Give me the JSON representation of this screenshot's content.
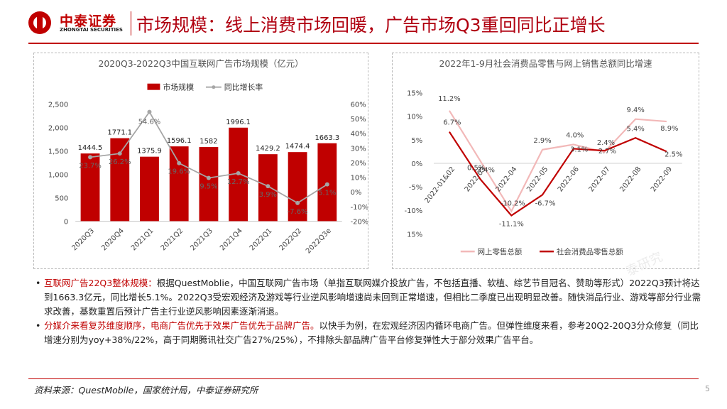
{
  "header": {
    "logo_cn": "中泰证券",
    "logo_en": "ZHONGTAI SECURITIES",
    "title": "市场规模：线上消费市场回暖，广告市场Q3重回同比正增长"
  },
  "colors": {
    "brand_red": "#c00000",
    "bar_red": "#c00000",
    "growth_gray": "#a6a6a6",
    "online_pink": "#f2b8b8",
    "total_red": "#c00000"
  },
  "chart_data": [
    {
      "type": "bar",
      "title": "2020Q3-2022Q3中国互联网广告市场规模（亿元）",
      "categories": [
        "2020Q3",
        "2020Q4",
        "2021Q1",
        "2021Q2",
        "2021Q3",
        "2021Q4",
        "2022Q1",
        "2022Q2",
        "2022Q3e"
      ],
      "series": [
        {
          "name": "市场规模",
          "type": "bar",
          "axis": "left",
          "values": [
            1444.5,
            1771.1,
            1375.9,
            1596.1,
            1582,
            1996.1,
            1429.2,
            1474.4,
            1663.3
          ],
          "labels": [
            "1444.5",
            "1771.1",
            "1375.9",
            "1596.1",
            "1582",
            "1996.1",
            "1429.2",
            "1474.4",
            "1663.3"
          ]
        },
        {
          "name": "同比增长率",
          "type": "line",
          "axis": "right",
          "values": [
            23.7,
            26.2,
            54.6,
            19.6,
            9.5,
            12.7,
            3.9,
            -7.6,
            5.1
          ],
          "labels": [
            "23.7%",
            "26.2%",
            "54.6%",
            "19.6%",
            "9.5%",
            "12.7%",
            "3.9%",
            "-7.6%",
            "5.1%"
          ]
        }
      ],
      "ylim": [
        0,
        2500
      ],
      "yticks": [
        "0",
        "500",
        "1,000",
        "1,500",
        "2,000",
        "2,500"
      ],
      "y2lim": [
        -20,
        60
      ],
      "y2ticks": [
        "-20%",
        "-10%",
        "0%",
        "10%",
        "20%",
        "30%",
        "40%",
        "50%",
        "60%"
      ],
      "legend": "top-center"
    },
    {
      "type": "line",
      "title": "2022年1-9月社会消费品零售与网上销售总额同比增速",
      "categories": [
        "2022-01&02",
        "2022-03",
        "2022-04",
        "2022-05",
        "2022-06",
        "2022-07",
        "2022-08",
        "2022-09"
      ],
      "series": [
        {
          "name": "网上零售总额",
          "values": [
            11.2,
            0.5,
            -10.2,
            2.9,
            4.0,
            2.4,
            9.4,
            8.9
          ],
          "labels": [
            "11.2%",
            "0.5%",
            "-10.2%",
            "2.9%",
            "4.0%",
            "2.4%",
            "9.4%",
            "8.9%"
          ]
        },
        {
          "name": "社会消费品零售总额",
          "values": [
            6.7,
            -3.4,
            -11.1,
            -6.7,
            3.1,
            2.7,
            5.4,
            2.5
          ],
          "labels": [
            "6.7%",
            "-3.4%",
            "-11.1%",
            "-6.7%",
            "3.1%",
            "2.7%",
            "5.4%",
            "2.5%"
          ]
        }
      ],
      "ylim": [
        -15,
        15
      ],
      "yticks": [
        "15%",
        "10%",
        "5%",
        "0%",
        "-5%",
        "-10%",
        "15%"
      ],
      "legend": "bottom"
    }
  ],
  "bullets": [
    {
      "head": "互联网广告22Q3整体规模：",
      "text": "根据QuestMoblie，中国互联网广告市场（单指互联网媒介投放广告，不包括直播、软植、综艺节目冠名、赞助等形式）2022Q3预计将达到1663.3亿元，同比增长5.1%。2022Q3受宏观经济及游戏等行业逆风影响增速尚未回到正常增速，但相比二季度已出现明显改善。随快消品行业、游戏等部分行业需求改善，基数重置后预计广告主行业逆风影响因素逐渐消退。"
    },
    {
      "head": "分媒介来看复苏维度顺序，电商广告优先于效果广告优先于品牌广告。",
      "text": "以快手为例，在宏观经济因内循环电商广告。但弹性维度来看，参考20Q2-20Q3分众修复（同比增速分别为yoy+38%/22%，高于同期腾讯社交广告27%/25%），不排除头部品牌广告平台修复弹性大于部分效果广告平台。"
    }
  ],
  "source": "资料来源：QuestMobile，国家统计局，中泰证券研究所",
  "page_number": "5",
  "watermark": "泰研究"
}
